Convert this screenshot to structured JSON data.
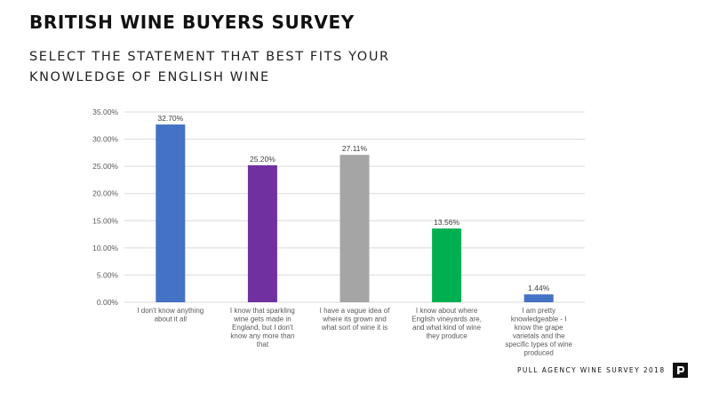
{
  "header": {
    "title": "BRITISH WINE BUYERS SURVEY",
    "subtitle": "SELECT THE STATEMENT THAT BEST FITS YOUR KNOWLEDGE OF ENGLISH WINE"
  },
  "footer": {
    "text": "PULL AGENCY WINE SURVEY 2018",
    "logo_icon": "pull-agency-logo-icon"
  },
  "colors": {
    "gridline": "#d9d9d9",
    "axis_text": "#595959"
  },
  "chart_data": {
    "type": "bar",
    "categories": [
      "I don't know anything about it all",
      "I know that sparkling wine gets made in England, but I don't know any more than that",
      "I have a vague idea of where its grown and what sort of wine it is",
      "I know about where English vineyards are, and what kind of wine they produce",
      "I am pretty knowledgeable - I know the grape varietals and the specific types of wine produced"
    ],
    "category_lines": [
      [
        "I don't know anything",
        "about it all"
      ],
      [
        "I know that sparkling",
        "wine gets made in",
        "England, but I don't",
        "know any more than",
        "that"
      ],
      [
        "I have a vague idea of",
        "where its grown and",
        "what sort of wine it is"
      ],
      [
        "I know about where",
        "English vineyards are,",
        "and what kind of wine",
        "they produce"
      ],
      [
        "I am pretty",
        "knowledgeable - I",
        "know the grape",
        "varietals and the",
        "specific types of wine",
        "produced"
      ]
    ],
    "values": [
      32.7,
      25.2,
      27.11,
      13.56,
      1.44
    ],
    "data_labels": [
      "32.70%",
      "25.20%",
      "27.11%",
      "13.56%",
      "1.44%"
    ],
    "bar_colors": [
      "#4472c4",
      "#7030a0",
      "#a5a5a5",
      "#00b050",
      "#4472c4"
    ],
    "yticks": [
      "0.00%",
      "5.00%",
      "10.00%",
      "15.00%",
      "20.00%",
      "25.00%",
      "30.00%",
      "35.00%"
    ],
    "ylim": [
      0,
      35
    ],
    "grid": true,
    "legend": "none"
  }
}
